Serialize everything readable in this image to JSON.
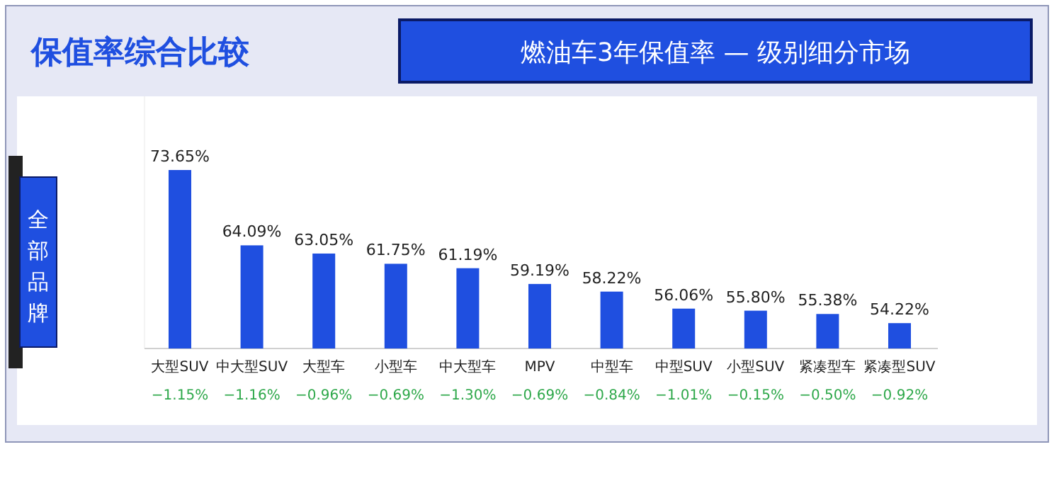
{
  "chart_data": {
    "type": "bar",
    "title": "保值率综合比较",
    "subtitle": "燃油车3年保值率 — 级别细分市场",
    "ylabel": "全部品牌",
    "categories": [
      "大型SUV",
      "中大型SUV",
      "大型车",
      "小型车",
      "中大型车",
      "MPV",
      "中型车",
      "中型SUV",
      "小型SUV",
      "紧凑型车",
      "紧凑型SUV"
    ],
    "values": [
      73.65,
      64.09,
      63.05,
      61.75,
      61.19,
      59.19,
      58.22,
      56.06,
      55.8,
      55.38,
      54.22
    ],
    "value_labels": [
      "73.65%",
      "64.09%",
      "63.05%",
      "61.75%",
      "61.19%",
      "59.19%",
      "58.22%",
      "56.06%",
      "55.80%",
      "55.38%",
      "54.22%"
    ],
    "color": "#1f4fe0",
    "ylim": [
      51,
      83
    ],
    "annotations": [
      "−1.15%",
      "−1.16%",
      "−0.96%",
      "−0.69%",
      "−1.30%",
      "−0.69%",
      "−0.84%",
      "−1.01%",
      "−0.15%",
      "−0.50%",
      "−0.92%"
    ]
  }
}
